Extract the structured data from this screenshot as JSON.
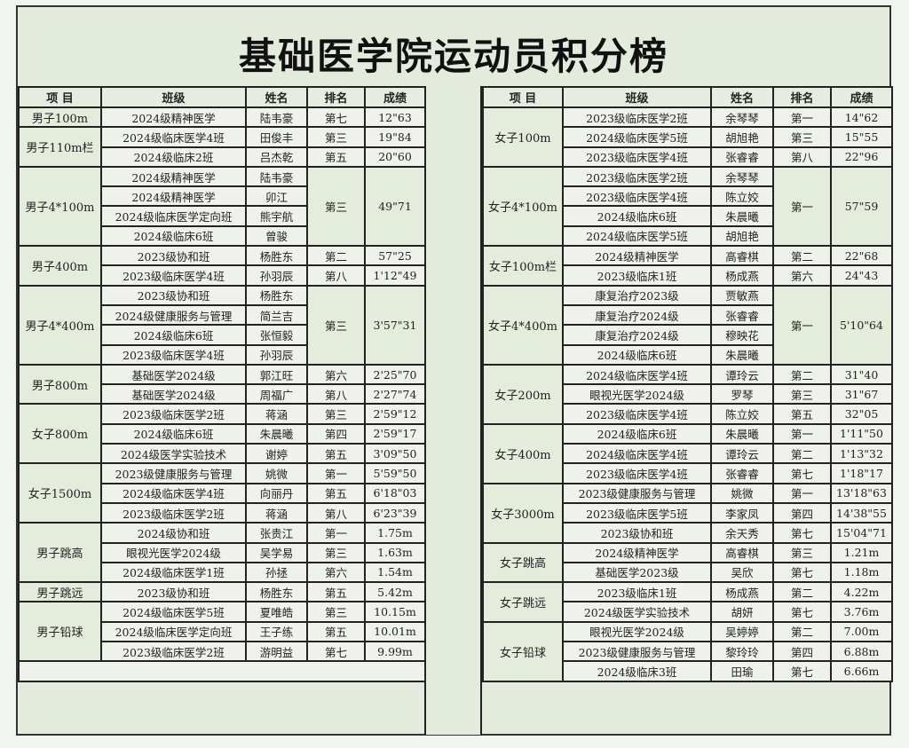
{
  "title": "基础医学院运动员积分榜",
  "headers": [
    "项 目",
    "班级",
    "姓名",
    "排名",
    "成绩"
  ],
  "left": [
    {
      "event": "男子100m",
      "rows": [
        {
          "class": "2024级精神医学",
          "name": "陆韦豪",
          "rank": "第七",
          "score": "12\"63"
        }
      ]
    },
    {
      "event": "男子110m栏",
      "rows": [
        {
          "class": "2024级临床医学4班",
          "name": "田俊丰",
          "rank": "第三",
          "score": "19\"84"
        },
        {
          "class": "2024级临床2班",
          "name": "吕杰乾",
          "rank": "第五",
          "score": "20\"60"
        }
      ]
    },
    {
      "event": "男子4*100m",
      "rank": "第三",
      "score": "49\"71",
      "rows": [
        {
          "class": "2024级精神医学",
          "name": "陆韦豪"
        },
        {
          "class": "2024级精神医学",
          "name": "卯江"
        },
        {
          "class": "2024级临床医学定向班",
          "name": "熊宇航"
        },
        {
          "class": "2024级临床6班",
          "name": "曾骏"
        }
      ]
    },
    {
      "event": "男子400m",
      "rows": [
        {
          "class": "2023级协和班",
          "name": "杨胜东",
          "rank": "第二",
          "score": "57\"25"
        },
        {
          "class": "2023级临床医学4班",
          "name": "孙羽辰",
          "rank": "第八",
          "score": "1'12\"49"
        }
      ]
    },
    {
      "event": "男子4*400m",
      "rank": "第三",
      "score": "3'57\"31",
      "rows": [
        {
          "class": "2023级协和班",
          "name": "杨胜东"
        },
        {
          "class": "2024级健康服务与管理",
          "name": "简兰吉"
        },
        {
          "class": "2024级临床6班",
          "name": "张恒毅"
        },
        {
          "class": "2023级临床医学4班",
          "name": "孙羽辰"
        }
      ]
    },
    {
      "event": "男子800m",
      "rows": [
        {
          "class": "基础医学2024级",
          "name": "郭江旺",
          "rank": "第六",
          "score": "2'25\"70"
        },
        {
          "class": "基础医学2024级",
          "name": "周福广",
          "rank": "第八",
          "score": "2'27\"74"
        }
      ]
    },
    {
      "event": "女子800m",
      "rows": [
        {
          "class": "2023级临床医学2班",
          "name": "蒋涵",
          "rank": "第三",
          "score": "2'59\"12"
        },
        {
          "class": "2024级临床6班",
          "name": "朱晨曦",
          "rank": "第四",
          "score": "2'59\"17"
        },
        {
          "class": "2024级医学实验技术",
          "name": "谢婷",
          "rank": "第五",
          "score": "3'09\"50"
        }
      ]
    },
    {
      "event": "女子1500m",
      "rows": [
        {
          "class": "2023级健康服务与管理",
          "name": "姚微",
          "rank": "第一",
          "score": "5'59\"50"
        },
        {
          "class": "2024级临床医学4班",
          "name": "向丽丹",
          "rank": "第五",
          "score": "6'18\"03"
        },
        {
          "class": "2023级临床医学2班",
          "name": "蒋涵",
          "rank": "第八",
          "score": "6'23\"39"
        }
      ]
    },
    {
      "event": "男子跳高",
      "rows": [
        {
          "class": "2024级协和班",
          "name": "张贵江",
          "rank": "第一",
          "score": "1.75m"
        },
        {
          "class": "眼视光医学2024级",
          "name": "吴学易",
          "rank": "第三",
          "score": "1.63m"
        },
        {
          "class": "2024级临床医学1班",
          "name": "孙拯",
          "rank": "第六",
          "score": "1.54m"
        }
      ]
    },
    {
      "event": "男子跳远",
      "rows": [
        {
          "class": "2023级协和班",
          "name": "杨胜东",
          "rank": "第五",
          "score": "5.42m"
        }
      ]
    },
    {
      "event": "男子铅球",
      "rows": [
        {
          "class": "2024级临床医学5班",
          "name": "夏唯皓",
          "rank": "第三",
          "score": "10.15m"
        },
        {
          "class": "2024级临床医学定向班",
          "name": "王子练",
          "rank": "第五",
          "score": "10.01m"
        },
        {
          "class": "2023级临床医学2班",
          "name": "游明益",
          "rank": "第七",
          "score": "9.99m"
        }
      ]
    }
  ],
  "right": [
    {
      "event": "女子100m",
      "rows": [
        {
          "class": "2023级临床医学2班",
          "name": "余琴琴",
          "rank": "第一",
          "score": "14\"62"
        },
        {
          "class": "2024级临床医学5班",
          "name": "胡旭艳",
          "rank": "第三",
          "score": "15\"55"
        },
        {
          "class": "2023级临床医学4班",
          "name": "张睿睿",
          "rank": "第八",
          "score": "22\"96"
        }
      ]
    },
    {
      "event": "女子4*100m",
      "rank": "第一",
      "score": "57\"59",
      "rows": [
        {
          "class": "2023级临床医学2班",
          "name": "余琴琴"
        },
        {
          "class": "2023级临床医学4班",
          "name": "陈立姣"
        },
        {
          "class": "2024级临床6班",
          "name": "朱晨曦"
        },
        {
          "class": "2024级临床医学5班",
          "name": "胡旭艳"
        }
      ]
    },
    {
      "event": "女子100m栏",
      "rows": [
        {
          "class": "2024级精神医学",
          "name": "高睿棋",
          "rank": "第二",
          "score": "22\"68"
        },
        {
          "class": "2023级临床1班",
          "name": "杨成燕",
          "rank": "第六",
          "score": "24\"43"
        }
      ]
    },
    {
      "event": "女子4*400m",
      "rank": "第一",
      "score": "5'10\"64",
      "rows": [
        {
          "class": "康复治疗2023级",
          "name": "贾敏燕"
        },
        {
          "class": "康复治疗2024级",
          "name": "张睿睿"
        },
        {
          "class": "康复治疗2024级",
          "name": "穆映花"
        },
        {
          "class": "2024级临床6班",
          "name": "朱晨曦"
        }
      ]
    },
    {
      "event": "女子200m",
      "rows": [
        {
          "class": "2024级临床医学4班",
          "name": "谭玲云",
          "rank": "第二",
          "score": "31\"40"
        },
        {
          "class": "眼视光医学2024级",
          "name": "罗琴",
          "rank": "第三",
          "score": "31\"67"
        },
        {
          "class": "2023级临床医学4班",
          "name": "陈立姣",
          "rank": "第五",
          "score": "32\"05"
        }
      ]
    },
    {
      "event": "女子400m",
      "rows": [
        {
          "class": "2024级临床6班",
          "name": "朱晨曦",
          "rank": "第一",
          "score": "1'11\"50"
        },
        {
          "class": "2024级临床医学4班",
          "name": "谭玲云",
          "rank": "第二",
          "score": "1'13\"32"
        },
        {
          "class": "2023级临床医学4班",
          "name": "张睿睿",
          "rank": "第七",
          "score": "1'18\"17"
        }
      ]
    },
    {
      "event": "女子3000m",
      "rows": [
        {
          "class": "2023级健康服务与管理",
          "name": "姚微",
          "rank": "第一",
          "score": "13'18\"63"
        },
        {
          "class": "2023级临床医学5班",
          "name": "李家凤",
          "rank": "第四",
          "score": "14'38\"55"
        },
        {
          "class": "2023级协和班",
          "name": "余天秀",
          "rank": "第七",
          "score": "15'04\"71"
        }
      ]
    },
    {
      "event": "女子跳高",
      "rows": [
        {
          "class": "2024级精神医学",
          "name": "高睿棋",
          "rank": "第三",
          "score": "1.21m"
        },
        {
          "class": "基础医学2023级",
          "name": "吴欣",
          "rank": "第七",
          "score": "1.18m"
        }
      ]
    },
    {
      "event": "女子跳远",
      "rows": [
        {
          "class": "2023级临床1班",
          "name": "杨成燕",
          "rank": "第二",
          "score": "4.22m"
        },
        {
          "class": "2024级医学实验技术",
          "name": "胡妍",
          "rank": "第七",
          "score": "3.76m"
        }
      ]
    },
    {
      "event": "女子铅球",
      "rows": [
        {
          "class": "眼视光医学2024级",
          "name": "吴婷婷",
          "rank": "第二",
          "score": "7.00m"
        },
        {
          "class": "2023级健康服务与管理",
          "name": "黎玲玲",
          "rank": "第四",
          "score": "6.88m"
        },
        {
          "class": "2024级临床3班",
          "name": "田瑜",
          "rank": "第七",
          "score": "6.66m"
        }
      ]
    }
  ]
}
